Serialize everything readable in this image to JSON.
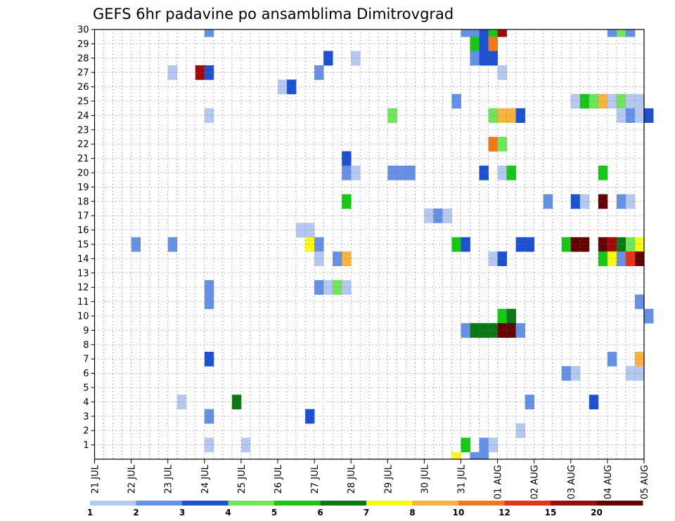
{
  "chart_data": {
    "type": "heatmap",
    "title": "GEFS 6hr padavine po ansamblima Dimitrovgrad",
    "xlabel": "",
    "ylabel": "",
    "x_ticks": [
      "21 JUL",
      "22 JUL",
      "23 JUL",
      "24 JUL",
      "25 JUL",
      "26 JUL",
      "27 JUL",
      "28 JUL",
      "29 JUL",
      "30 JUL",
      "31 JUL",
      "01 AUG",
      "02 AUG",
      "03 AUG",
      "04 AUG",
      "05 AUG"
    ],
    "y_ticks": [
      "1",
      "2",
      "3",
      "4",
      "5",
      "6",
      "7",
      "8",
      "9",
      "10",
      "11",
      "12",
      "13",
      "14",
      "15",
      "16",
      "17",
      "18",
      "19",
      "20",
      "21",
      "22",
      "23",
      "24",
      "25",
      "26",
      "27",
      "28",
      "29",
      "30"
    ],
    "ylim": [
      0,
      30
    ],
    "x_unit": "6-hour step from 21 JUL 00Z",
    "grid": "dotted",
    "color_scale": {
      "bounds": [
        "1",
        "2",
        "3",
        "4",
        "5",
        "6",
        "7",
        "8",
        "10",
        "12",
        "15",
        "20"
      ],
      "colors": [
        "#b4c8f0",
        "#6490e6",
        "#1e50d2",
        "#6ee65a",
        "#14c814",
        "#0a7814",
        "#fafa14",
        "#fab43c",
        "#f57814",
        "#e63219",
        "#a00a0a",
        "#640000"
      ]
    },
    "cells": [
      {
        "step": 12,
        "member": 30,
        "level": 2
      },
      {
        "step": 40,
        "member": 30,
        "level": 2
      },
      {
        "step": 41,
        "member": 30,
        "level": 2
      },
      {
        "step": 42,
        "member": 30,
        "level": 3
      },
      {
        "step": 43,
        "member": 30,
        "level": 5
      },
      {
        "step": 44,
        "member": 30,
        "level": 11
      },
      {
        "step": 56,
        "member": 30,
        "level": 2
      },
      {
        "step": 57,
        "member": 30,
        "level": 4
      },
      {
        "step": 58,
        "member": 30,
        "level": 2
      },
      {
        "step": 41,
        "member": 29,
        "level": 5
      },
      {
        "step": 42,
        "member": 29,
        "level": 3
      },
      {
        "step": 43,
        "member": 29,
        "level": 9
      },
      {
        "step": 25,
        "member": 28,
        "level": 3
      },
      {
        "step": 28,
        "member": 28,
        "level": 1
      },
      {
        "step": 41,
        "member": 28,
        "level": 2
      },
      {
        "step": 42,
        "member": 28,
        "level": 3
      },
      {
        "step": 43,
        "member": 28,
        "level": 3
      },
      {
        "step": 8,
        "member": 27,
        "level": 1
      },
      {
        "step": 11,
        "member": 27,
        "level": 11
      },
      {
        "step": 12,
        "member": 27,
        "level": 3
      },
      {
        "step": 24,
        "member": 27,
        "level": 2
      },
      {
        "step": 44,
        "member": 27,
        "level": 1
      },
      {
        "step": 20,
        "member": 26,
        "level": 1
      },
      {
        "step": 21,
        "member": 26,
        "level": 3
      },
      {
        "step": 39,
        "member": 25,
        "level": 2
      },
      {
        "step": 52,
        "member": 25,
        "level": 1
      },
      {
        "step": 53,
        "member": 25,
        "level": 5
      },
      {
        "step": 54,
        "member": 25,
        "level": 4
      },
      {
        "step": 55,
        "member": 25,
        "level": 8
      },
      {
        "step": 56,
        "member": 25,
        "level": 1
      },
      {
        "step": 57,
        "member": 25,
        "level": 4
      },
      {
        "step": 58,
        "member": 25,
        "level": 1
      },
      {
        "step": 59,
        "member": 25,
        "level": 1
      },
      {
        "step": 12,
        "member": 24,
        "level": 1
      },
      {
        "step": 32,
        "member": 24,
        "level": 4
      },
      {
        "step": 43,
        "member": 24,
        "level": 4
      },
      {
        "step": 44,
        "member": 24,
        "level": 8
      },
      {
        "step": 45,
        "member": 24,
        "level": 8
      },
      {
        "step": 46,
        "member": 24,
        "level": 3
      },
      {
        "step": 57,
        "member": 24,
        "level": 1
      },
      {
        "step": 58,
        "member": 24,
        "level": 2
      },
      {
        "step": 59,
        "member": 24,
        "level": 1
      },
      {
        "step": 60,
        "member": 24,
        "level": 3
      },
      {
        "step": 43,
        "member": 22,
        "level": 9
      },
      {
        "step": 44,
        "member": 22,
        "level": 4
      },
      {
        "step": 27,
        "member": 21,
        "level": 3
      },
      {
        "step": 27,
        "member": 20,
        "level": 2
      },
      {
        "step": 28,
        "member": 20,
        "level": 1
      },
      {
        "step": 32,
        "member": 20,
        "level": 2
      },
      {
        "step": 33,
        "member": 20,
        "level": 2
      },
      {
        "step": 34,
        "member": 20,
        "level": 2
      },
      {
        "step": 42,
        "member": 20,
        "level": 3
      },
      {
        "step": 44,
        "member": 20,
        "level": 1
      },
      {
        "step": 45,
        "member": 20,
        "level": 5
      },
      {
        "step": 55,
        "member": 20,
        "level": 5
      },
      {
        "step": 27,
        "member": 18,
        "level": 5
      },
      {
        "step": 49,
        "member": 18,
        "level": 2
      },
      {
        "step": 52,
        "member": 18,
        "level": 3
      },
      {
        "step": 53,
        "member": 18,
        "level": 1
      },
      {
        "step": 55,
        "member": 18,
        "level": 12
      },
      {
        "step": 57,
        "member": 18,
        "level": 2
      },
      {
        "step": 58,
        "member": 18,
        "level": 1
      },
      {
        "step": 36,
        "member": 17,
        "level": 1
      },
      {
        "step": 37,
        "member": 17,
        "level": 2
      },
      {
        "step": 38,
        "member": 17,
        "level": 1
      },
      {
        "step": 22,
        "member": 16,
        "level": 1
      },
      {
        "step": 23,
        "member": 16,
        "level": 1
      },
      {
        "step": 4,
        "member": 15,
        "level": 2
      },
      {
        "step": 8,
        "member": 15,
        "level": 2
      },
      {
        "step": 23,
        "member": 15,
        "level": 7
      },
      {
        "step": 24,
        "member": 15,
        "level": 2
      },
      {
        "step": 39,
        "member": 15,
        "level": 5
      },
      {
        "step": 40,
        "member": 15,
        "level": 3
      },
      {
        "step": 46,
        "member": 15,
        "level": 3
      },
      {
        "step": 47,
        "member": 15,
        "level": 3
      },
      {
        "step": 51,
        "member": 15,
        "level": 5
      },
      {
        "step": 52,
        "member": 15,
        "level": 12
      },
      {
        "step": 53,
        "member": 15,
        "level": 12
      },
      {
        "step": 55,
        "member": 15,
        "level": 12
      },
      {
        "step": 56,
        "member": 15,
        "level": 11
      },
      {
        "step": 57,
        "member": 15,
        "level": 6
      },
      {
        "step": 58,
        "member": 15,
        "level": 4
      },
      {
        "step": 59,
        "member": 15,
        "level": 7
      },
      {
        "step": 24,
        "member": 14,
        "level": 1
      },
      {
        "step": 26,
        "member": 14,
        "level": 2
      },
      {
        "step": 27,
        "member": 14,
        "level": 8
      },
      {
        "step": 43,
        "member": 14,
        "level": 1
      },
      {
        "step": 44,
        "member": 14,
        "level": 3
      },
      {
        "step": 55,
        "member": 14,
        "level": 5
      },
      {
        "step": 56,
        "member": 14,
        "level": 7
      },
      {
        "step": 57,
        "member": 14,
        "level": 2
      },
      {
        "step": 58,
        "member": 14,
        "level": 10
      },
      {
        "step": 59,
        "member": 14,
        "level": 12
      },
      {
        "step": 12,
        "member": 12,
        "level": 2
      },
      {
        "step": 24,
        "member": 12,
        "level": 2
      },
      {
        "step": 25,
        "member": 12,
        "level": 1
      },
      {
        "step": 26,
        "member": 12,
        "level": 4
      },
      {
        "step": 27,
        "member": 12,
        "level": 1
      },
      {
        "step": 12,
        "member": 11,
        "level": 2
      },
      {
        "step": 59,
        "member": 11,
        "level": 2
      },
      {
        "step": 44,
        "member": 10,
        "level": 5
      },
      {
        "step": 45,
        "member": 10,
        "level": 6
      },
      {
        "step": 60,
        "member": 10,
        "level": 2
      },
      {
        "step": 40,
        "member": 9,
        "level": 2
      },
      {
        "step": 41,
        "member": 9,
        "level": 6
      },
      {
        "step": 42,
        "member": 9,
        "level": 6
      },
      {
        "step": 43,
        "member": 9,
        "level": 6
      },
      {
        "step": 44,
        "member": 9,
        "level": 12
      },
      {
        "step": 45,
        "member": 9,
        "level": 12
      },
      {
        "step": 46,
        "member": 9,
        "level": 2
      },
      {
        "step": 12,
        "member": 7,
        "level": 3
      },
      {
        "step": 56,
        "member": 7,
        "level": 2
      },
      {
        "step": 59,
        "member": 7,
        "level": 8
      },
      {
        "step": 51,
        "member": 6,
        "level": 2
      },
      {
        "step": 52,
        "member": 6,
        "level": 1
      },
      {
        "step": 58,
        "member": 6,
        "level": 1
      },
      {
        "step": 59,
        "member": 6,
        "level": 1
      },
      {
        "step": 9,
        "member": 4,
        "level": 1
      },
      {
        "step": 15,
        "member": 4,
        "level": 6
      },
      {
        "step": 47,
        "member": 4,
        "level": 2
      },
      {
        "step": 54,
        "member": 4,
        "level": 3
      },
      {
        "step": 12,
        "member": 3,
        "level": 2
      },
      {
        "step": 23,
        "member": 3,
        "level": 3
      },
      {
        "step": 46,
        "member": 2,
        "level": 1
      },
      {
        "step": 12,
        "member": 1,
        "level": 1
      },
      {
        "step": 16,
        "member": 1,
        "level": 1
      },
      {
        "step": 40,
        "member": 1,
        "level": 5
      },
      {
        "step": 42,
        "member": 1,
        "level": 2
      },
      {
        "step": 43,
        "member": 1,
        "level": 1
      },
      {
        "step": 39,
        "member": 0,
        "level": 7
      },
      {
        "step": 41,
        "member": 0,
        "level": 2
      },
      {
        "step": 42,
        "member": 0,
        "level": 2
      }
    ]
  }
}
